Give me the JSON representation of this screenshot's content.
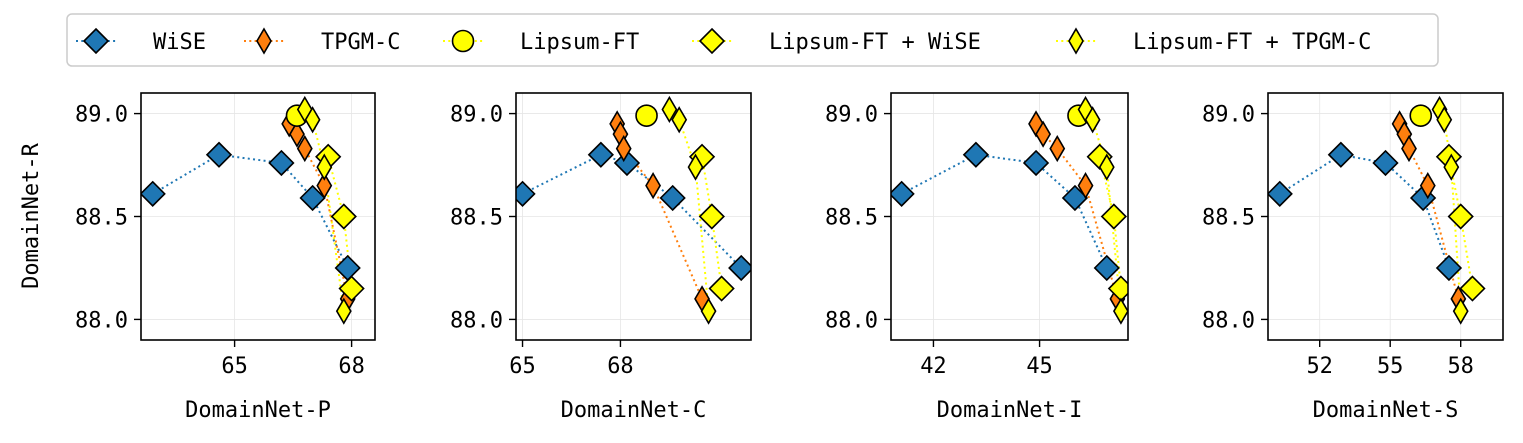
{
  "chart_data": {
    "type": "line",
    "ylabel": "DomainNet-R",
    "ylim": [
      87.9,
      89.1
    ],
    "yticks": [
      "88.0",
      "88.5",
      "89.0"
    ],
    "yticks_values": [
      88.0,
      88.5,
      89.0
    ],
    "grid": true,
    "legend": {
      "placement": "top",
      "entries": [
        "WiSE",
        "TPGM-C",
        "Lipsum-FT",
        "Lipsum-FT + WiSE",
        "Lipsum-FT + TPGM-C"
      ]
    },
    "series_styles": {
      "WiSE": {
        "color": "#1f77b4",
        "marker": "diamond",
        "line": "dotted"
      },
      "TPGM-C": {
        "color": "#ff7f0e",
        "marker": "thin-diamond",
        "line": "dotted"
      },
      "Lipsum-FT": {
        "color": "#ffff00",
        "marker": "circle",
        "line": "dotted"
      },
      "Lipsum-FT + WiSE": {
        "color": "#ffff00",
        "marker": "diamond",
        "line": "dotted"
      },
      "Lipsum-FT + TPGM-C": {
        "color": "#ffff00",
        "marker": "thin-diamond",
        "line": "dotted"
      }
    },
    "panels": [
      {
        "xlabel": "DomainNet-P",
        "xlim": [
          62.6,
          68.6
        ],
        "xticks": [
          "65",
          "68"
        ],
        "xticks_values": [
          65,
          68
        ],
        "series": [
          {
            "name": "WiSE",
            "x": [
              62.9,
              64.6,
              66.2,
              67.0,
              67.9
            ],
            "y": [
              88.61,
              88.8,
              88.76,
              88.59,
              88.25
            ]
          },
          {
            "name": "TPGM-C",
            "x": [
              66.4,
              66.6,
              66.8,
              67.3,
              67.9
            ],
            "y": [
              88.95,
              88.9,
              88.83,
              88.65,
              88.1
            ]
          },
          {
            "name": "Lipsum-FT",
            "x": [
              66.6
            ],
            "y": [
              88.99
            ]
          },
          {
            "name": "Lipsum-FT + WiSE",
            "x": [
              67.4,
              67.8,
              68.0
            ],
            "y": [
              88.79,
              88.5,
              88.15
            ]
          },
          {
            "name": "Lipsum-FT + TPGM-C",
            "x": [
              66.8,
              67.0,
              67.3,
              67.8
            ],
            "y": [
              89.02,
              88.97,
              88.74,
              88.04
            ]
          }
        ]
      },
      {
        "xlabel": "DomainNet-C",
        "xlim": [
          64.8,
          72.0
        ],
        "xticks": [
          "65",
          "68"
        ],
        "xticks_values": [
          65,
          68
        ],
        "series": [
          {
            "name": "WiSE",
            "x": [
              65.0,
              67.4,
              68.2,
              69.6,
              71.7
            ],
            "y": [
              88.61,
              88.8,
              88.76,
              88.59,
              88.25
            ]
          },
          {
            "name": "TPGM-C",
            "x": [
              67.9,
              68.0,
              68.1,
              69.0,
              70.5
            ],
            "y": [
              88.95,
              88.9,
              88.83,
              88.65,
              88.1
            ]
          },
          {
            "name": "Lipsum-FT",
            "x": [
              68.8
            ],
            "y": [
              88.99
            ]
          },
          {
            "name": "Lipsum-FT + WiSE",
            "x": [
              70.5,
              70.8,
              71.1
            ],
            "y": [
              88.79,
              88.5,
              88.15
            ]
          },
          {
            "name": "Lipsum-FT + TPGM-C",
            "x": [
              69.5,
              69.8,
              70.3,
              70.7
            ],
            "y": [
              89.02,
              88.97,
              88.74,
              88.04
            ]
          }
        ]
      },
      {
        "xlabel": "DomainNet-I",
        "xlim": [
          40.8,
          47.5
        ],
        "xticks": [
          "42",
          "45"
        ],
        "xticks_values": [
          42,
          45
        ],
        "series": [
          {
            "name": "WiSE",
            "x": [
              41.1,
              43.2,
              44.9,
              46.0,
              46.9
            ],
            "y": [
              88.61,
              88.8,
              88.76,
              88.59,
              88.25
            ]
          },
          {
            "name": "TPGM-C",
            "x": [
              44.9,
              45.1,
              45.5,
              46.3,
              47.2
            ],
            "y": [
              88.95,
              88.9,
              88.83,
              88.65,
              88.1
            ]
          },
          {
            "name": "Lipsum-FT",
            "x": [
              46.1
            ],
            "y": [
              88.99
            ]
          },
          {
            "name": "Lipsum-FT + WiSE",
            "x": [
              46.7,
              47.1,
              47.3
            ],
            "y": [
              88.79,
              88.5,
              88.15
            ]
          },
          {
            "name": "Lipsum-FT + TPGM-C",
            "x": [
              46.3,
              46.5,
              46.9,
              47.3
            ],
            "y": [
              89.02,
              88.97,
              88.74,
              88.04
            ]
          }
        ]
      },
      {
        "xlabel": "DomainNet-S",
        "xlim": [
          49.8,
          59.8
        ],
        "xticks": [
          "52",
          "55",
          "58"
        ],
        "xticks_values": [
          52,
          55,
          58
        ],
        "series": [
          {
            "name": "WiSE",
            "x": [
              50.3,
              52.9,
              54.8,
              56.4,
              57.5
            ],
            "y": [
              88.61,
              88.8,
              88.76,
              88.59,
              88.25
            ]
          },
          {
            "name": "TPGM-C",
            "x": [
              55.4,
              55.6,
              55.8,
              56.6,
              57.9
            ],
            "y": [
              88.95,
              88.9,
              88.83,
              88.65,
              88.1
            ]
          },
          {
            "name": "Lipsum-FT",
            "x": [
              56.3
            ],
            "y": [
              88.99
            ]
          },
          {
            "name": "Lipsum-FT + WiSE",
            "x": [
              57.5,
              58.0,
              58.5
            ],
            "y": [
              88.79,
              88.5,
              88.15
            ]
          },
          {
            "name": "Lipsum-FT + TPGM-C",
            "x": [
              57.1,
              57.3,
              57.6,
              58.0
            ],
            "y": [
              89.02,
              88.97,
              88.74,
              88.04
            ]
          }
        ]
      }
    ]
  }
}
